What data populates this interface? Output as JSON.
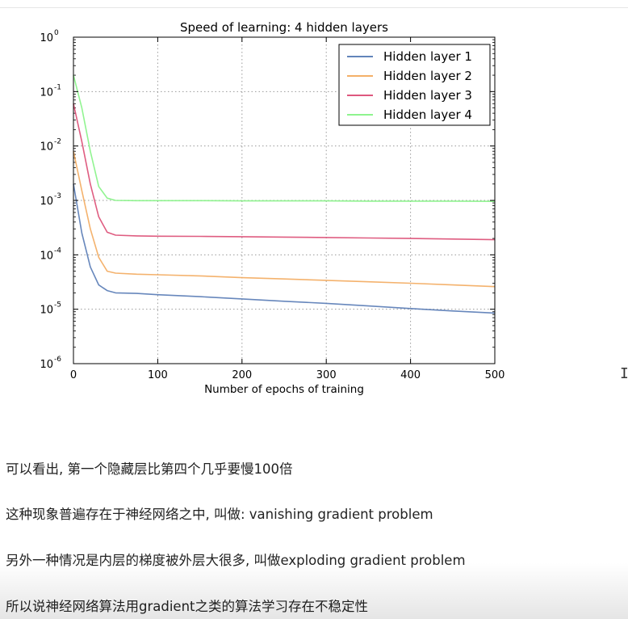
{
  "chart_data": {
    "type": "line",
    "title": "Speed of learning: 4 hidden layers",
    "xlabel": "Number of epochs of training",
    "ylabel": "",
    "xlim": [
      0,
      500
    ],
    "ylim": [
      1e-06,
      1
    ],
    "yscale": "log",
    "grid": true,
    "legend_position": "top-right",
    "x_ticks": [
      "0",
      "100",
      "200",
      "300",
      "400",
      "500"
    ],
    "y_ticks": [
      {
        "base": "10",
        "exp": "0"
      },
      {
        "base": "10",
        "exp": "-1"
      },
      {
        "base": "10",
        "exp": "-2"
      },
      {
        "base": "10",
        "exp": "-3"
      },
      {
        "base": "10",
        "exp": "-4"
      },
      {
        "base": "10",
        "exp": "-5"
      },
      {
        "base": "10",
        "exp": "-6"
      }
    ],
    "x": [
      0,
      10,
      20,
      30,
      40,
      50,
      75,
      100,
      150,
      200,
      250,
      300,
      350,
      400,
      450,
      500
    ],
    "series": [
      {
        "name": "Hidden layer 1",
        "color": "#4c72b0",
        "values": [
          0.002,
          0.00025,
          6e-05,
          2.8e-05,
          2.2e-05,
          2e-05,
          1.95e-05,
          1.85e-05,
          1.7e-05,
          1.55e-05,
          1.4e-05,
          1.28e-05,
          1.15e-05,
          1.03e-05,
          9.3e-06,
          8.5e-06
        ]
      },
      {
        "name": "Hidden layer 2",
        "color": "#f2a553",
        "values": [
          0.008,
          0.0015,
          0.0003,
          9e-05,
          5e-05,
          4.6e-05,
          4.4e-05,
          4.3e-05,
          4.1e-05,
          3.8e-05,
          3.6e-05,
          3.4e-05,
          3.2e-05,
          3e-05,
          2.8e-05,
          2.6e-05
        ]
      },
      {
        "name": "Hidden layer 3",
        "color": "#d9416b",
        "values": [
          0.06,
          0.012,
          0.002,
          0.0005,
          0.00026,
          0.00023,
          0.000223,
          0.00022,
          0.000218,
          0.000215,
          0.000212,
          0.000208,
          0.000204,
          0.0002,
          0.000195,
          0.00019
        ]
      },
      {
        "name": "Hidden layer 4",
        "color": "#7ef27e",
        "values": [
          0.2,
          0.05,
          0.008,
          0.0018,
          0.0011,
          0.001,
          0.00099,
          0.00099,
          0.00099,
          0.00098,
          0.00098,
          0.00098,
          0.00097,
          0.00097,
          0.00097,
          0.00096
        ]
      }
    ]
  },
  "notes": {
    "line1": "可以看出, 第一个隐藏层比第四个几乎要慢100倍",
    "line2": "这种现象普遍存在于神经网络之中, 叫做: vanishing gradient problem",
    "line3": "另外一种情况是内层的梯度被外层大很多, 叫做exploding gradient problem",
    "line4": "所以说神经网络算法用gradient之类的算法学习存在不稳定性"
  },
  "cursor": {
    "icon": "text-cursor-icon"
  }
}
